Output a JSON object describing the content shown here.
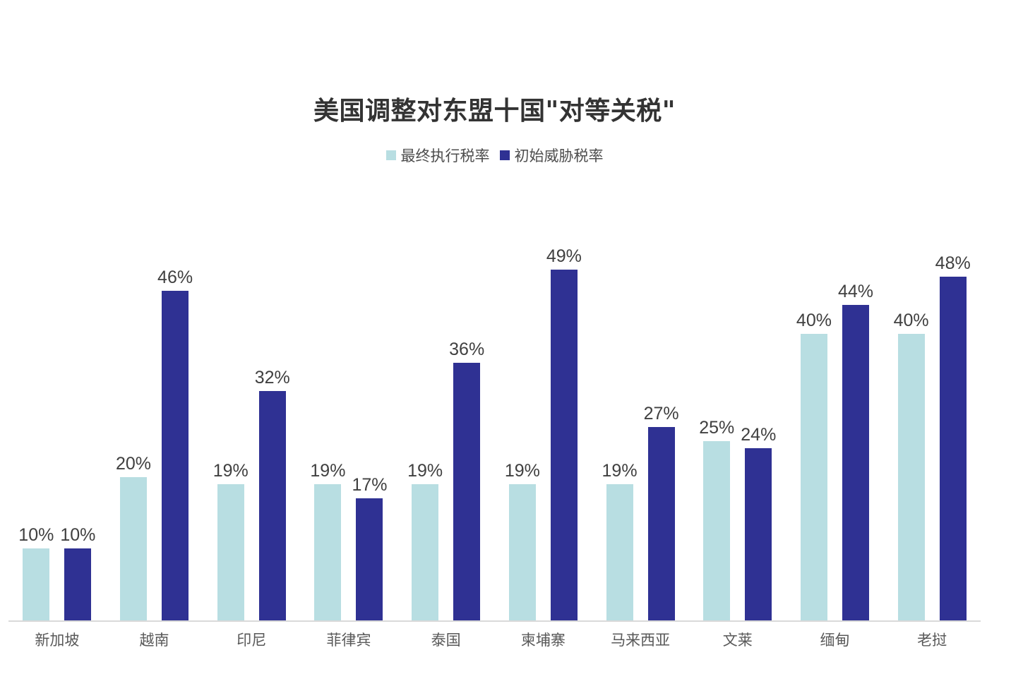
{
  "chart_data": {
    "type": "bar",
    "title": "美国调整对东盟十国\"对等关税\"",
    "categories": [
      "新加坡",
      "越南",
      "印尼",
      "菲律宾",
      "泰国",
      "柬埔寨",
      "马来西亚",
      "文莱",
      "缅甸",
      "老挝"
    ],
    "series": [
      {
        "name": "最终执行税率",
        "color": "#b8dee2",
        "values": [
          10,
          20,
          19,
          19,
          19,
          19,
          19,
          25,
          40,
          40
        ]
      },
      {
        "name": "初始威胁税率",
        "color": "#2f3193",
        "values": [
          10,
          46,
          32,
          17,
          36,
          49,
          27,
          24,
          44,
          48
        ]
      }
    ],
    "value_suffix": "%",
    "ylim": [
      0,
      50
    ],
    "grid": false,
    "data_labels": true,
    "legend_position": "top",
    "xlabel": "",
    "ylabel": ""
  },
  "colors": {
    "axis_line": "#d9d9d9",
    "value_label": "#404040",
    "category_label": "#595959",
    "title": "#333333",
    "background": "#ffffff"
  }
}
